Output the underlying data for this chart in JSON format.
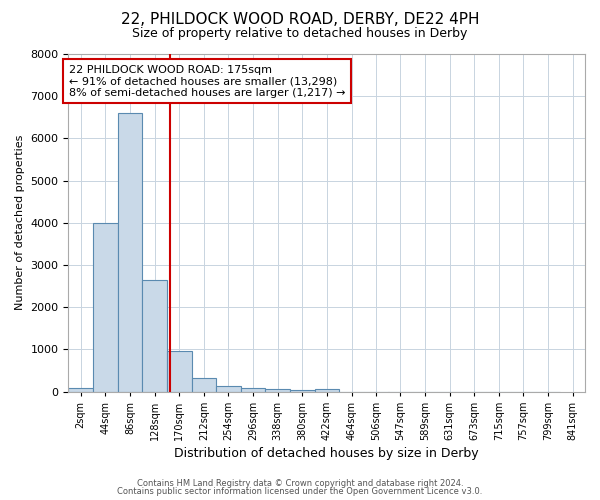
{
  "title1": "22, PHILDOCK WOOD ROAD, DERBY, DE22 4PH",
  "title2": "Size of property relative to detached houses in Derby",
  "xlabel": "Distribution of detached houses by size in Derby",
  "ylabel": "Number of detached properties",
  "bin_labels": [
    "2sqm",
    "44sqm",
    "86sqm",
    "128sqm",
    "170sqm",
    "212sqm",
    "254sqm",
    "296sqm",
    "338sqm",
    "380sqm",
    "422sqm",
    "464sqm",
    "506sqm",
    "547sqm",
    "589sqm",
    "631sqm",
    "673sqm",
    "715sqm",
    "757sqm",
    "799sqm",
    "841sqm"
  ],
  "bin_edges": [
    2,
    44,
    86,
    128,
    170,
    212,
    254,
    296,
    338,
    380,
    422,
    464,
    506,
    547,
    589,
    631,
    673,
    715,
    757,
    799,
    841
  ],
  "bar_heights": [
    75,
    4000,
    6600,
    2650,
    950,
    325,
    140,
    80,
    50,
    30,
    60,
    0,
    0,
    0,
    0,
    0,
    0,
    0,
    0,
    0
  ],
  "bar_color": "#c9d9e8",
  "bar_edge_color": "#5a8ab0",
  "property_value": 175,
  "vline_color": "#cc0000",
  "annotation_text_line1": "22 PHILDOCK WOOD ROAD: 175sqm",
  "annotation_text_line2": "← 91% of detached houses are smaller (13,298)",
  "annotation_text_line3": "8% of semi-detached houses are larger (1,217) →",
  "annotation_box_color": "#cc0000",
  "ylim": [
    0,
    8000
  ],
  "footer1": "Contains HM Land Registry data © Crown copyright and database right 2024.",
  "footer2": "Contains public sector information licensed under the Open Government Licence v3.0.",
  "bg_color": "#ffffff",
  "grid_color": "#c8d4e0",
  "title1_fontsize": 11,
  "title2_fontsize": 9,
  "xlabel_fontsize": 9,
  "ylabel_fontsize": 8,
  "tick_fontsize": 7,
  "annotation_fontsize": 8,
  "footer_fontsize": 6
}
